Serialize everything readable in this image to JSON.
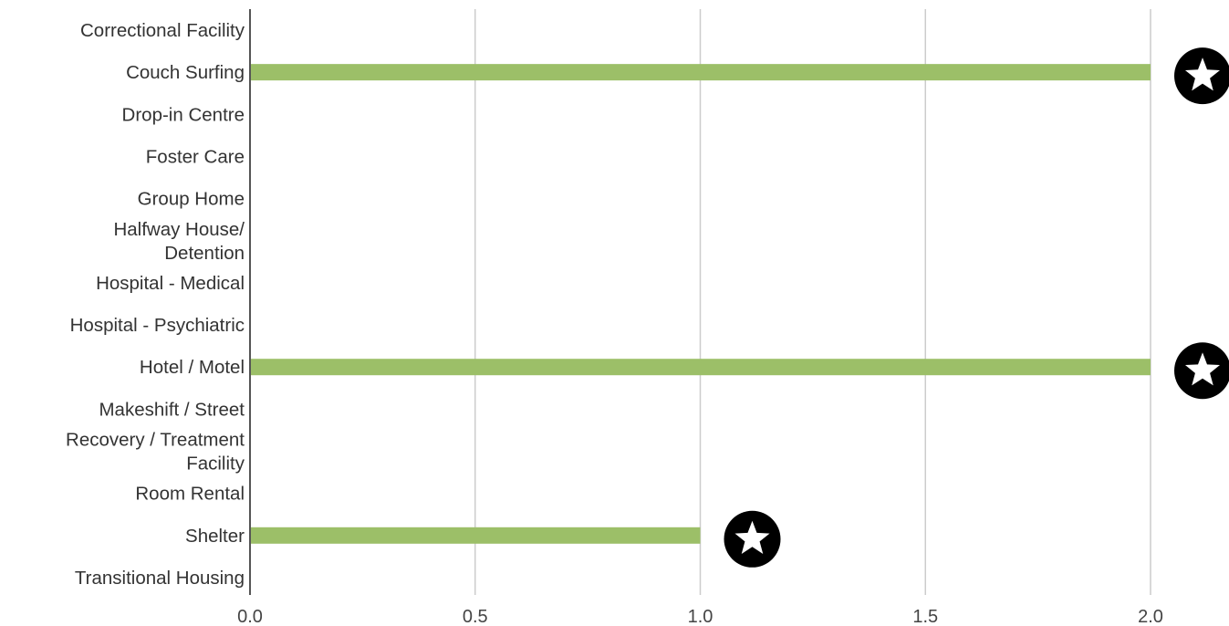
{
  "chart_data": {
    "type": "bar",
    "orientation": "horizontal",
    "title": "",
    "xlabel": "",
    "ylabel": "",
    "categories": [
      [
        "Correctional Facility"
      ],
      [
        "Couch Surfing"
      ],
      [
        "Drop-in Centre"
      ],
      [
        "Foster Care"
      ],
      [
        "Group Home"
      ],
      [
        "Halfway House/",
        "Detention"
      ],
      [
        "Hospital - Medical"
      ],
      [
        "Hospital - Psychiatric"
      ],
      [
        "Hotel / Motel"
      ],
      [
        "Makeshift / Street"
      ],
      [
        "Recovery / Treatment",
        "Facility"
      ],
      [
        "Room Rental"
      ],
      [
        "Shelter"
      ],
      [
        "Transitional Housing"
      ]
    ],
    "values": [
      0,
      2,
      0,
      0,
      0,
      0,
      0,
      0,
      2,
      0,
      0,
      0,
      1,
      0
    ],
    "xlim": [
      0,
      2
    ],
    "xticks": [
      "0.0",
      "0.5",
      "1.0",
      "1.5",
      "2.0"
    ],
    "xtick_values": [
      0,
      0.5,
      1,
      1.5,
      2
    ],
    "grid": true,
    "legend": "none",
    "bar_color": "#9cbf68",
    "marker": "star-icon",
    "marker_circle_color": "#000000",
    "marker_star_color": "#ffffff"
  }
}
